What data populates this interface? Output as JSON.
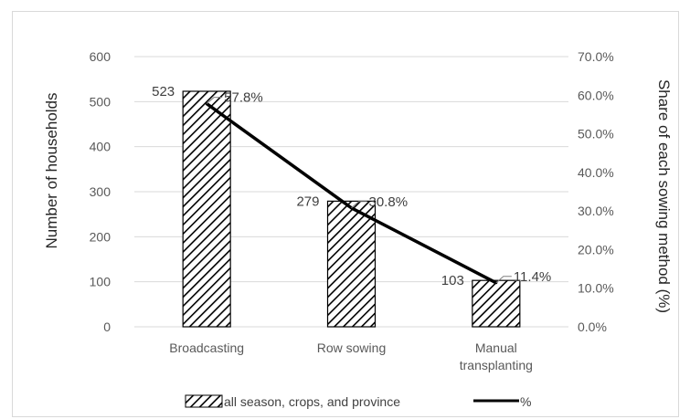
{
  "chart_data": {
    "type": "bar",
    "categories": [
      "Broadcasting",
      "Row sowing",
      "Manual transplanting"
    ],
    "category_lines": [
      [
        "Broadcasting"
      ],
      [
        "Row sowing"
      ],
      [
        "Manual",
        "transplanting"
      ]
    ],
    "series": [
      {
        "name": "all season, crops, and province",
        "type": "bar",
        "axis": "left",
        "pattern": "diagonal-hatch",
        "values": [
          523,
          279,
          103
        ],
        "data_labels": [
          "523",
          "279",
          "103"
        ]
      },
      {
        "name": "%",
        "type": "line",
        "axis": "right",
        "color": "#000000",
        "values": [
          57.8,
          30.8,
          11.4
        ],
        "data_labels": [
          "57.8%",
          "30.8%",
          "11.4%"
        ]
      }
    ],
    "ylabel": "Number of households",
    "y2label": "Share of each sowing method (%)",
    "ylim": [
      0,
      600
    ],
    "y2lim": [
      0,
      70
    ],
    "yticks": [
      "0",
      "100",
      "200",
      "300",
      "400",
      "500",
      "600"
    ],
    "y2ticks": [
      "0.0%",
      "10.0%",
      "20.0%",
      "30.0%",
      "40.0%",
      "50.0%",
      "60.0%",
      "70.0%"
    ],
    "grid": "horizontal",
    "legend_position": "bottom",
    "colors": {
      "gridline": "#d9d9d9",
      "bar_edge": "#000000",
      "line": "#000000",
      "tick_text": "#595959"
    }
  }
}
